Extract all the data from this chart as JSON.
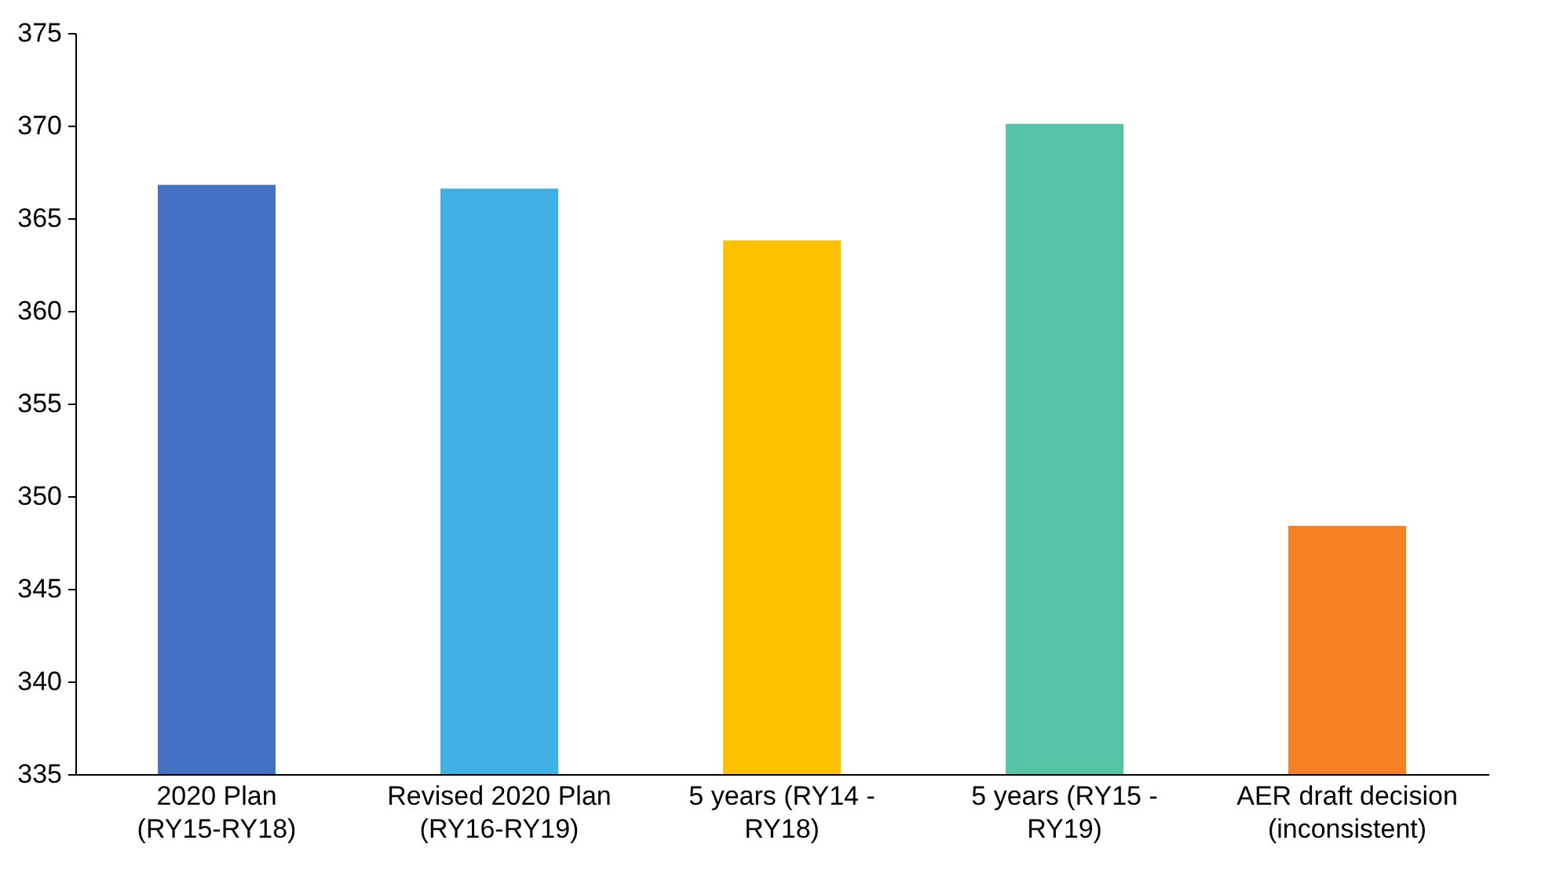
{
  "chart_data": {
    "type": "bar",
    "categories": [
      "2020 Plan\n(RY15-RY18)",
      "Revised 2020 Plan\n(RY16-RY19)",
      "5 years (RY14 -\nRY18)",
      "5 years (RY15 -\nRY19)",
      "AER draft decision\n(inconsistent)"
    ],
    "values": [
      366.8,
      366.6,
      363.8,
      370.1,
      348.4
    ],
    "colors": [
      "#4472c4",
      "#41b0e4",
      "#ffc000",
      "#57c4a8",
      "#f58025"
    ],
    "ylim": [
      335,
      375
    ],
    "yticks": [
      335,
      340,
      345,
      350,
      355,
      360,
      365,
      370,
      375
    ],
    "grid": false
  }
}
